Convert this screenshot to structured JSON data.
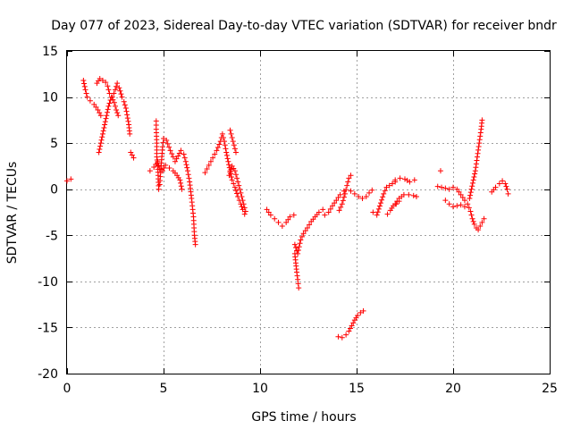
{
  "chart_data": {
    "type": "scatter",
    "title": "Day 077 of 2023, Sidereal Day-to-day VTEC variation (SDTVAR) for receiver bndr",
    "xlabel": "GPS time / hours",
    "ylabel": "SDTVAR / TECUs",
    "xlim": [
      0,
      25
    ],
    "ylim": [
      -20,
      15
    ],
    "xticks": [
      0,
      5,
      10,
      15,
      20,
      25
    ],
    "yticks": [
      -20,
      -15,
      -10,
      -5,
      0,
      5,
      10,
      15
    ],
    "grid": true,
    "marker": "+",
    "color": "#ff0000",
    "segments": [
      [
        [
          0.0,
          0.9
        ],
        [
          0.2,
          1.1
        ]
      ],
      [
        [
          0.85,
          11.8
        ],
        [
          0.95,
          10.8
        ],
        [
          1.05,
          10.0
        ],
        [
          1.2,
          9.6
        ],
        [
          1.4,
          9.2
        ],
        [
          1.6,
          8.6
        ],
        [
          1.75,
          8.0
        ]
      ],
      [
        [
          1.55,
          11.5
        ],
        [
          1.7,
          12.0
        ],
        [
          1.85,
          11.8
        ],
        [
          2.0,
          11.6
        ],
        [
          2.1,
          11.2
        ],
        [
          2.2,
          10.4
        ],
        [
          2.35,
          10.0
        ],
        [
          2.5,
          10.8
        ],
        [
          2.6,
          11.5
        ],
        [
          2.7,
          11.0
        ],
        [
          2.85,
          10.0
        ],
        [
          2.95,
          9.5
        ],
        [
          3.05,
          8.8
        ],
        [
          3.2,
          7.0
        ],
        [
          3.25,
          6.0
        ]
      ],
      [
        [
          1.65,
          4.0
        ],
        [
          1.75,
          5.0
        ],
        [
          1.85,
          6.0
        ],
        [
          1.95,
          7.0
        ],
        [
          2.05,
          8.0
        ],
        [
          2.15,
          9.0
        ],
        [
          2.3,
          10.0
        ],
        [
          2.45,
          9.4
        ],
        [
          2.55,
          8.6
        ],
        [
          2.65,
          8.0
        ]
      ],
      [
        [
          3.3,
          4.0
        ],
        [
          3.45,
          3.4
        ]
      ],
      [
        [
          4.3,
          2.0
        ],
        [
          4.5,
          2.4
        ],
        [
          4.7,
          3.0
        ],
        [
          4.8,
          2.2
        ],
        [
          4.95,
          2.0
        ],
        [
          5.1,
          2.6
        ],
        [
          5.3,
          2.3
        ],
        [
          5.5,
          2.0
        ],
        [
          5.7,
          1.5
        ],
        [
          5.85,
          1.0
        ],
        [
          5.95,
          0.0
        ]
      ],
      [
        [
          4.62,
          7.4
        ],
        [
          4.62,
          6.5
        ],
        [
          4.65,
          5.0
        ],
        [
          4.65,
          3.5
        ],
        [
          4.7,
          2.5
        ],
        [
          4.72,
          1.5
        ],
        [
          4.75,
          0.0
        ]
      ],
      [
        [
          4.8,
          0.5
        ],
        [
          4.85,
          1.8
        ],
        [
          4.9,
          3.2
        ],
        [
          4.95,
          4.6
        ],
        [
          5.0,
          5.5
        ],
        [
          5.15,
          5.3
        ],
        [
          5.35,
          4.2
        ],
        [
          5.5,
          3.5
        ]
      ],
      [
        [
          5.6,
          3.0
        ],
        [
          5.75,
          3.6
        ],
        [
          5.9,
          4.2
        ],
        [
          6.05,
          3.8
        ],
        [
          6.15,
          3.0
        ],
        [
          6.25,
          2.0
        ],
        [
          6.35,
          0.8
        ],
        [
          6.45,
          -1.0
        ],
        [
          6.55,
          -3.0
        ],
        [
          6.6,
          -5.0
        ],
        [
          6.65,
          -6.0
        ]
      ],
      [
        [
          7.15,
          1.8
        ],
        [
          7.35,
          2.6
        ],
        [
          7.55,
          3.4
        ],
        [
          7.75,
          4.2
        ],
        [
          7.95,
          5.2
        ],
        [
          8.05,
          6.0
        ],
        [
          8.15,
          5.2
        ],
        [
          8.25,
          4.0
        ],
        [
          8.35,
          3.0
        ],
        [
          8.45,
          2.0
        ],
        [
          8.55,
          1.0
        ],
        [
          8.7,
          0.2
        ],
        [
          8.85,
          -0.8
        ],
        [
          9.0,
          -1.6
        ],
        [
          9.1,
          -2.2
        ],
        [
          9.2,
          -2.7
        ]
      ],
      [
        [
          8.45,
          6.4
        ],
        [
          8.55,
          5.6
        ],
        [
          8.65,
          4.8
        ],
        [
          8.75,
          4.0
        ]
      ],
      [
        [
          8.4,
          1.5
        ],
        [
          8.55,
          2.5
        ],
        [
          8.7,
          2.0
        ],
        [
          8.9,
          0.4
        ],
        [
          9.1,
          -1.2
        ],
        [
          9.25,
          -2.4
        ]
      ],
      [
        [
          10.35,
          -2.2
        ],
        [
          10.55,
          -2.8
        ],
        [
          10.75,
          -3.2
        ],
        [
          10.95,
          -3.6
        ],
        [
          11.15,
          -4.0
        ],
        [
          11.35,
          -3.6
        ],
        [
          11.55,
          -3.0
        ],
        [
          11.75,
          -2.8
        ]
      ],
      [
        [
          11.8,
          -7.0
        ],
        [
          11.85,
          -8.0
        ],
        [
          11.9,
          -9.0
        ],
        [
          11.95,
          -9.8
        ],
        [
          12.0,
          -10.7
        ]
      ],
      [
        [
          11.8,
          -6.0
        ],
        [
          11.95,
          -7.0
        ],
        [
          12.1,
          -5.5
        ],
        [
          12.25,
          -4.8
        ],
        [
          12.45,
          -4.2
        ],
        [
          12.65,
          -3.5
        ],
        [
          12.85,
          -3.0
        ],
        [
          13.05,
          -2.5
        ],
        [
          13.25,
          -2.2
        ]
      ],
      [
        [
          13.35,
          -2.8
        ],
        [
          13.55,
          -2.5
        ],
        [
          13.75,
          -1.8
        ],
        [
          13.95,
          -1.2
        ],
        [
          14.15,
          -0.6
        ],
        [
          14.35,
          -0.2
        ]
      ],
      [
        [
          14.1,
          -2.3
        ],
        [
          14.25,
          -1.6
        ],
        [
          14.4,
          -0.5
        ],
        [
          14.5,
          0.4
        ],
        [
          14.6,
          1.2
        ],
        [
          14.7,
          1.5
        ]
      ],
      [
        [
          14.7,
          -0.2
        ],
        [
          14.9,
          -0.5
        ],
        [
          15.1,
          -0.8
        ],
        [
          15.3,
          -1.0
        ],
        [
          15.5,
          -0.8
        ],
        [
          15.65,
          -0.4
        ],
        [
          15.8,
          -0.1
        ]
      ],
      [
        [
          14.05,
          -16.0
        ],
        [
          14.25,
          -16.1
        ],
        [
          14.45,
          -15.8
        ],
        [
          14.6,
          -15.4
        ],
        [
          14.75,
          -14.8
        ],
        [
          14.9,
          -14.2
        ],
        [
          15.05,
          -13.7
        ],
        [
          15.2,
          -13.4
        ],
        [
          15.35,
          -13.2
        ]
      ],
      [
        [
          15.85,
          -2.5
        ],
        [
          16.05,
          -2.8
        ],
        [
          16.25,
          -1.5
        ],
        [
          16.4,
          -0.5
        ],
        [
          16.55,
          0.2
        ],
        [
          16.7,
          0.4
        ],
        [
          16.85,
          0.6
        ],
        [
          17.0,
          0.8
        ]
      ],
      [
        [
          16.6,
          -2.7
        ],
        [
          16.75,
          -2.3
        ],
        [
          16.9,
          -1.8
        ],
        [
          17.05,
          -1.6
        ],
        [
          17.2,
          -1.3
        ]
      ],
      [
        [
          17.0,
          -1.6
        ],
        [
          17.2,
          -1.0
        ],
        [
          17.45,
          -0.6
        ],
        [
          17.7,
          -0.6
        ],
        [
          17.95,
          -0.7
        ],
        [
          18.1,
          -0.8
        ]
      ],
      [
        [
          17.0,
          1.0
        ],
        [
          17.25,
          1.2
        ],
        [
          17.5,
          1.1
        ],
        [
          17.75,
          0.8
        ],
        [
          18.0,
          1.0
        ]
      ],
      [
        [
          19.35,
          2.0
        ]
      ],
      [
        [
          19.2,
          0.3
        ],
        [
          19.4,
          0.2
        ],
        [
          19.6,
          0.1
        ],
        [
          19.8,
          0.0
        ],
        [
          20.0,
          0.2
        ],
        [
          20.2,
          0.0
        ],
        [
          20.4,
          -0.6
        ],
        [
          20.6,
          -1.2
        ],
        [
          20.75,
          -1.6
        ],
        [
          20.9,
          -2.4
        ],
        [
          21.0,
          -3.2
        ],
        [
          21.1,
          -3.8
        ],
        [
          21.2,
          -4.2
        ],
        [
          21.3,
          -4.4
        ],
        [
          21.4,
          -4.0
        ],
        [
          21.5,
          -3.6
        ],
        [
          21.6,
          -3.2
        ]
      ],
      [
        [
          19.6,
          -1.2
        ],
        [
          19.8,
          -1.6
        ],
        [
          20.0,
          -1.9
        ],
        [
          20.2,
          -1.8
        ],
        [
          20.4,
          -1.7
        ],
        [
          20.6,
          -1.9
        ]
      ],
      [
        [
          20.85,
          -1.0
        ],
        [
          20.95,
          0.0
        ],
        [
          21.05,
          1.0
        ],
        [
          21.15,
          2.0
        ],
        [
          21.25,
          3.5
        ],
        [
          21.35,
          5.0
        ],
        [
          21.45,
          6.5
        ],
        [
          21.5,
          7.5
        ]
      ],
      [
        [
          22.0,
          -0.3
        ],
        [
          22.2,
          0.2
        ],
        [
          22.4,
          0.6
        ],
        [
          22.55,
          0.9
        ],
        [
          22.7,
          0.6
        ],
        [
          22.8,
          0.0
        ],
        [
          22.85,
          -0.5
        ]
      ]
    ]
  }
}
